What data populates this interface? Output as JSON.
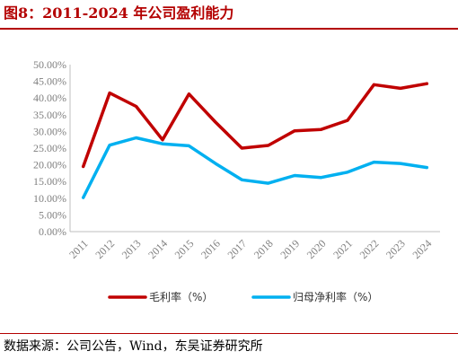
{
  "header": {
    "title": "图8：2011-2024 年公司盈利能力"
  },
  "footer": {
    "source": "数据来源：公司公告，Wind，东吴证券研究所"
  },
  "chart_data": {
    "type": "line",
    "x": [
      "2011",
      "2012",
      "2013",
      "2014",
      "2015",
      "2016",
      "2017",
      "2018",
      "2019",
      "2020",
      "2021",
      "2022",
      "2023",
      "2024"
    ],
    "series": [
      {
        "name": "毛利率（%）",
        "color": "#c00000",
        "values": [
          19.5,
          41.5,
          37.5,
          27.5,
          41.2,
          32.8,
          25.0,
          25.8,
          30.2,
          30.6,
          33.3,
          44.0,
          42.9,
          44.3
        ]
      },
      {
        "name": "归母净利率（%）",
        "color": "#00b0f0",
        "values": [
          10.2,
          25.9,
          28.1,
          26.3,
          25.7,
          20.4,
          15.5,
          14.5,
          16.8,
          16.2,
          17.8,
          20.8,
          20.4,
          19.2
        ]
      }
    ],
    "ylim": [
      0,
      50
    ],
    "yticks": [
      "0.00%",
      "5.00%",
      "10.00%",
      "15.00%",
      "20.00%",
      "25.00%",
      "30.00%",
      "35.00%",
      "40.00%",
      "45.00%",
      "50.00%"
    ],
    "grid": false,
    "legend_position": "bottom"
  }
}
